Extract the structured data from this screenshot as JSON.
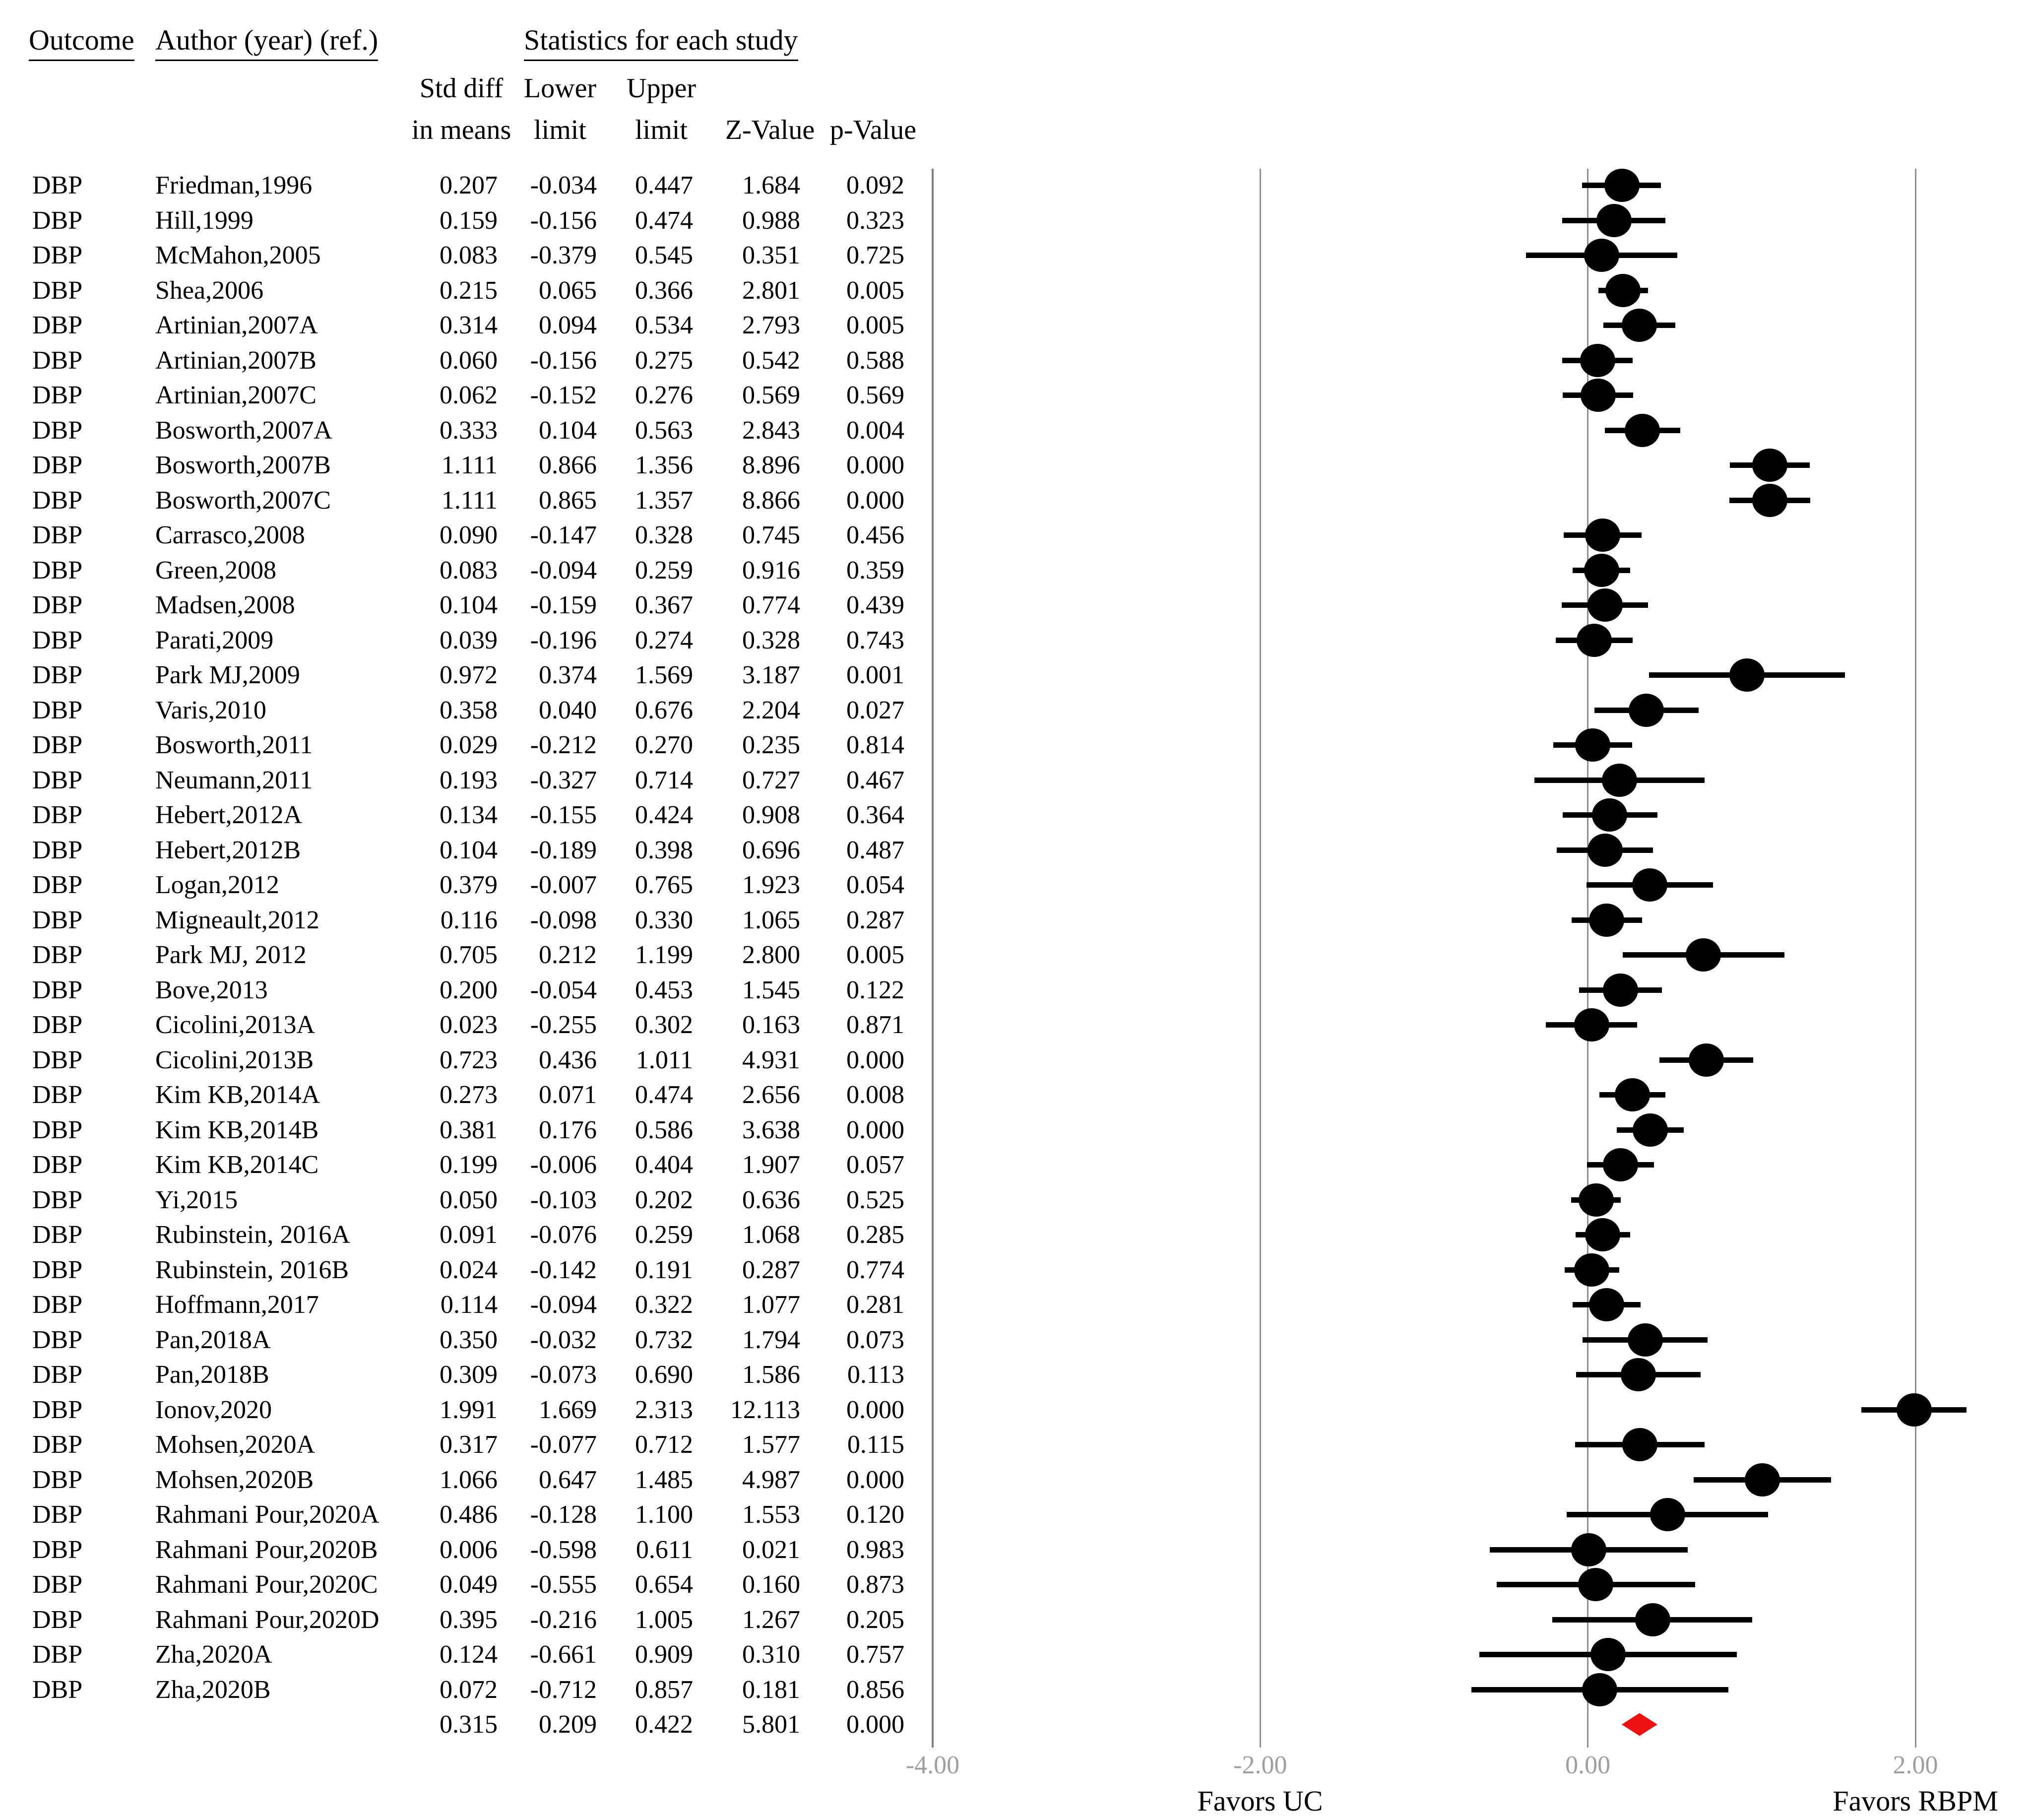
{
  "header": {
    "outcome": "Outcome",
    "author": "Author (year) (ref.)",
    "stats": "Statistics for each study",
    "sub_std_diff": "Std diff\nin means",
    "sub_lower": "Lower\nlimit",
    "sub_upper": "Upper\nlimit",
    "sub_z": "Z-Value",
    "sub_p": "p-Value"
  },
  "axis": {
    "ticks": [
      {
        "value": -4,
        "label": "-4.00"
      },
      {
        "value": -2,
        "label": "-2.00"
      },
      {
        "value": 0,
        "label": "0.00"
      },
      {
        "value": 2,
        "label": "2.00"
      }
    ],
    "favors_left": "Favors UC",
    "favors_right": "Favors RBPM"
  },
  "colors": {
    "marker": "#000000",
    "ci_line": "#000000",
    "summary_diamond": "#ee1111",
    "gridline": "#8f8f8f",
    "separator_line": "#7f7f7f",
    "tick_label": "#9e9e9e",
    "text": "#000000"
  },
  "chart_data": {
    "type": "forest",
    "title": "",
    "xlabel": "",
    "ylabel": "",
    "xlim": [
      -4,
      2.7
    ],
    "axis_ticks": [
      -4.0,
      -2.0,
      0.0,
      2.0
    ],
    "grid": "vertical-only",
    "effect_measure": "Std diff in means",
    "annotations": {
      "left": "Favors UC",
      "right": "Favors RBPM"
    },
    "studies": [
      {
        "outcome": "DBP",
        "author": "Friedman,1996",
        "std_diff": "0.207",
        "lower": "-0.034",
        "upper": "0.447",
        "z_value": "1.684",
        "p_value": "0.092"
      },
      {
        "outcome": "DBP",
        "author": "Hill,1999",
        "std_diff": "0.159",
        "lower": "-0.156",
        "upper": "0.474",
        "z_value": "0.988",
        "p_value": "0.323"
      },
      {
        "outcome": "DBP",
        "author": "McMahon,2005",
        "std_diff": "0.083",
        "lower": "-0.379",
        "upper": "0.545",
        "z_value": "0.351",
        "p_value": "0.725"
      },
      {
        "outcome": "DBP",
        "author": "Shea,2006",
        "std_diff": "0.215",
        "lower": "0.065",
        "upper": "0.366",
        "z_value": "2.801",
        "p_value": "0.005"
      },
      {
        "outcome": "DBP",
        "author": "Artinian,2007A",
        "std_diff": "0.314",
        "lower": "0.094",
        "upper": "0.534",
        "z_value": "2.793",
        "p_value": "0.005"
      },
      {
        "outcome": "DBP",
        "author": "Artinian,2007B",
        "std_diff": "0.060",
        "lower": "-0.156",
        "upper": "0.275",
        "z_value": "0.542",
        "p_value": "0.588"
      },
      {
        "outcome": "DBP",
        "author": "Artinian,2007C",
        "std_diff": "0.062",
        "lower": "-0.152",
        "upper": "0.276",
        "z_value": "0.569",
        "p_value": "0.569"
      },
      {
        "outcome": "DBP",
        "author": "Bosworth,2007A",
        "std_diff": "0.333",
        "lower": "0.104",
        "upper": "0.563",
        "z_value": "2.843",
        "p_value": "0.004"
      },
      {
        "outcome": "DBP",
        "author": "Bosworth,2007B",
        "std_diff": "1.111",
        "lower": "0.866",
        "upper": "1.356",
        "z_value": "8.896",
        "p_value": "0.000"
      },
      {
        "outcome": "DBP",
        "author": "Bosworth,2007C",
        "std_diff": "1.111",
        "lower": "0.865",
        "upper": "1.357",
        "z_value": "8.866",
        "p_value": "0.000"
      },
      {
        "outcome": "DBP",
        "author": "Carrasco,2008",
        "std_diff": "0.090",
        "lower": "-0.147",
        "upper": "0.328",
        "z_value": "0.745",
        "p_value": "0.456"
      },
      {
        "outcome": "DBP",
        "author": "Green,2008",
        "std_diff": "0.083",
        "lower": "-0.094",
        "upper": "0.259",
        "z_value": "0.916",
        "p_value": "0.359"
      },
      {
        "outcome": "DBP",
        "author": "Madsen,2008",
        "std_diff": "0.104",
        "lower": "-0.159",
        "upper": "0.367",
        "z_value": "0.774",
        "p_value": "0.439"
      },
      {
        "outcome": "DBP",
        "author": "Parati,2009",
        "std_diff": "0.039",
        "lower": "-0.196",
        "upper": "0.274",
        "z_value": "0.328",
        "p_value": "0.743"
      },
      {
        "outcome": "DBP",
        "author": "Park MJ,2009",
        "std_diff": "0.972",
        "lower": "0.374",
        "upper": "1.569",
        "z_value": "3.187",
        "p_value": "0.001"
      },
      {
        "outcome": "DBP",
        "author": "Varis,2010",
        "std_diff": "0.358",
        "lower": "0.040",
        "upper": "0.676",
        "z_value": "2.204",
        "p_value": "0.027"
      },
      {
        "outcome": "DBP",
        "author": "Bosworth,2011",
        "std_diff": "0.029",
        "lower": "-0.212",
        "upper": "0.270",
        "z_value": "0.235",
        "p_value": "0.814"
      },
      {
        "outcome": "DBP",
        "author": "Neumann,2011",
        "std_diff": "0.193",
        "lower": "-0.327",
        "upper": "0.714",
        "z_value": "0.727",
        "p_value": "0.467"
      },
      {
        "outcome": "DBP",
        "author": "Hebert,2012A",
        "std_diff": "0.134",
        "lower": "-0.155",
        "upper": "0.424",
        "z_value": "0.908",
        "p_value": "0.364"
      },
      {
        "outcome": "DBP",
        "author": "Hebert,2012B",
        "std_diff": "0.104",
        "lower": "-0.189",
        "upper": "0.398",
        "z_value": "0.696",
        "p_value": "0.487"
      },
      {
        "outcome": "DBP",
        "author": "Logan,2012",
        "std_diff": "0.379",
        "lower": "-0.007",
        "upper": "0.765",
        "z_value": "1.923",
        "p_value": "0.054"
      },
      {
        "outcome": "DBP",
        "author": "Migneault,2012",
        "std_diff": "0.116",
        "lower": "-0.098",
        "upper": "0.330",
        "z_value": "1.065",
        "p_value": "0.287"
      },
      {
        "outcome": "DBP",
        "author": "Park MJ, 2012",
        "std_diff": "0.705",
        "lower": "0.212",
        "upper": "1.199",
        "z_value": "2.800",
        "p_value": "0.005"
      },
      {
        "outcome": "DBP",
        "author": "Bove,2013",
        "std_diff": "0.200",
        "lower": "-0.054",
        "upper": "0.453",
        "z_value": "1.545",
        "p_value": "0.122"
      },
      {
        "outcome": "DBP",
        "author": "Cicolini,2013A",
        "std_diff": "0.023",
        "lower": "-0.255",
        "upper": "0.302",
        "z_value": "0.163",
        "p_value": "0.871"
      },
      {
        "outcome": "DBP",
        "author": "Cicolini,2013B",
        "std_diff": "0.723",
        "lower": "0.436",
        "upper": "1.011",
        "z_value": "4.931",
        "p_value": "0.000"
      },
      {
        "outcome": "DBP",
        "author": "Kim KB,2014A",
        "std_diff": "0.273",
        "lower": "0.071",
        "upper": "0.474",
        "z_value": "2.656",
        "p_value": "0.008"
      },
      {
        "outcome": "DBP",
        "author": "Kim KB,2014B",
        "std_diff": "0.381",
        "lower": "0.176",
        "upper": "0.586",
        "z_value": "3.638",
        "p_value": "0.000"
      },
      {
        "outcome": "DBP",
        "author": "Kim KB,2014C",
        "std_diff": "0.199",
        "lower": "-0.006",
        "upper": "0.404",
        "z_value": "1.907",
        "p_value": "0.057"
      },
      {
        "outcome": "DBP",
        "author": "Yi,2015",
        "std_diff": "0.050",
        "lower": "-0.103",
        "upper": "0.202",
        "z_value": "0.636",
        "p_value": "0.525"
      },
      {
        "outcome": "DBP",
        "author": "Rubinstein, 2016A",
        "std_diff": "0.091",
        "lower": "-0.076",
        "upper": "0.259",
        "z_value": "1.068",
        "p_value": "0.285"
      },
      {
        "outcome": "DBP",
        "author": "Rubinstein, 2016B",
        "std_diff": "0.024",
        "lower": "-0.142",
        "upper": "0.191",
        "z_value": "0.287",
        "p_value": "0.774"
      },
      {
        "outcome": "DBP",
        "author": "Hoffmann,2017",
        "std_diff": "0.114",
        "lower": "-0.094",
        "upper": "0.322",
        "z_value": "1.077",
        "p_value": "0.281"
      },
      {
        "outcome": "DBP",
        "author": "Pan,2018A",
        "std_diff": "0.350",
        "lower": "-0.032",
        "upper": "0.732",
        "z_value": "1.794",
        "p_value": "0.073"
      },
      {
        "outcome": "DBP",
        "author": "Pan,2018B",
        "std_diff": "0.309",
        "lower": "-0.073",
        "upper": "0.690",
        "z_value": "1.586",
        "p_value": "0.113"
      },
      {
        "outcome": "DBP",
        "author": "Ionov,2020",
        "std_diff": "1.991",
        "lower": "1.669",
        "upper": "2.313",
        "z_value": "12.113",
        "p_value": "0.000"
      },
      {
        "outcome": "DBP",
        "author": "Mohsen,2020A",
        "std_diff": "0.317",
        "lower": "-0.077",
        "upper": "0.712",
        "z_value": "1.577",
        "p_value": "0.115"
      },
      {
        "outcome": "DBP",
        "author": "Mohsen,2020B",
        "std_diff": "1.066",
        "lower": "0.647",
        "upper": "1.485",
        "z_value": "4.987",
        "p_value": "0.000"
      },
      {
        "outcome": "DBP",
        "author": "Rahmani Pour,2020A",
        "std_diff": "0.486",
        "lower": "-0.128",
        "upper": "1.100",
        "z_value": "1.553",
        "p_value": "0.120"
      },
      {
        "outcome": "DBP",
        "author": "Rahmani Pour,2020B",
        "std_diff": "0.006",
        "lower": "-0.598",
        "upper": "0.611",
        "z_value": "0.021",
        "p_value": "0.983"
      },
      {
        "outcome": "DBP",
        "author": "Rahmani Pour,2020C",
        "std_diff": "0.049",
        "lower": "-0.555",
        "upper": "0.654",
        "z_value": "0.160",
        "p_value": "0.873"
      },
      {
        "outcome": "DBP",
        "author": "Rahmani Pour,2020D",
        "std_diff": "0.395",
        "lower": "-0.216",
        "upper": "1.005",
        "z_value": "1.267",
        "p_value": "0.205"
      },
      {
        "outcome": "DBP",
        "author": "Zha,2020A",
        "std_diff": "0.124",
        "lower": "-0.661",
        "upper": "0.909",
        "z_value": "0.310",
        "p_value": "0.757"
      },
      {
        "outcome": "DBP",
        "author": "Zha,2020B",
        "std_diff": "0.072",
        "lower": "-0.712",
        "upper": "0.857",
        "z_value": "0.181",
        "p_value": "0.856"
      }
    ],
    "overall": {
      "std_diff": "0.315",
      "lower": "0.209",
      "upper": "0.422",
      "z_value": "5.801",
      "p_value": "0.000"
    }
  }
}
